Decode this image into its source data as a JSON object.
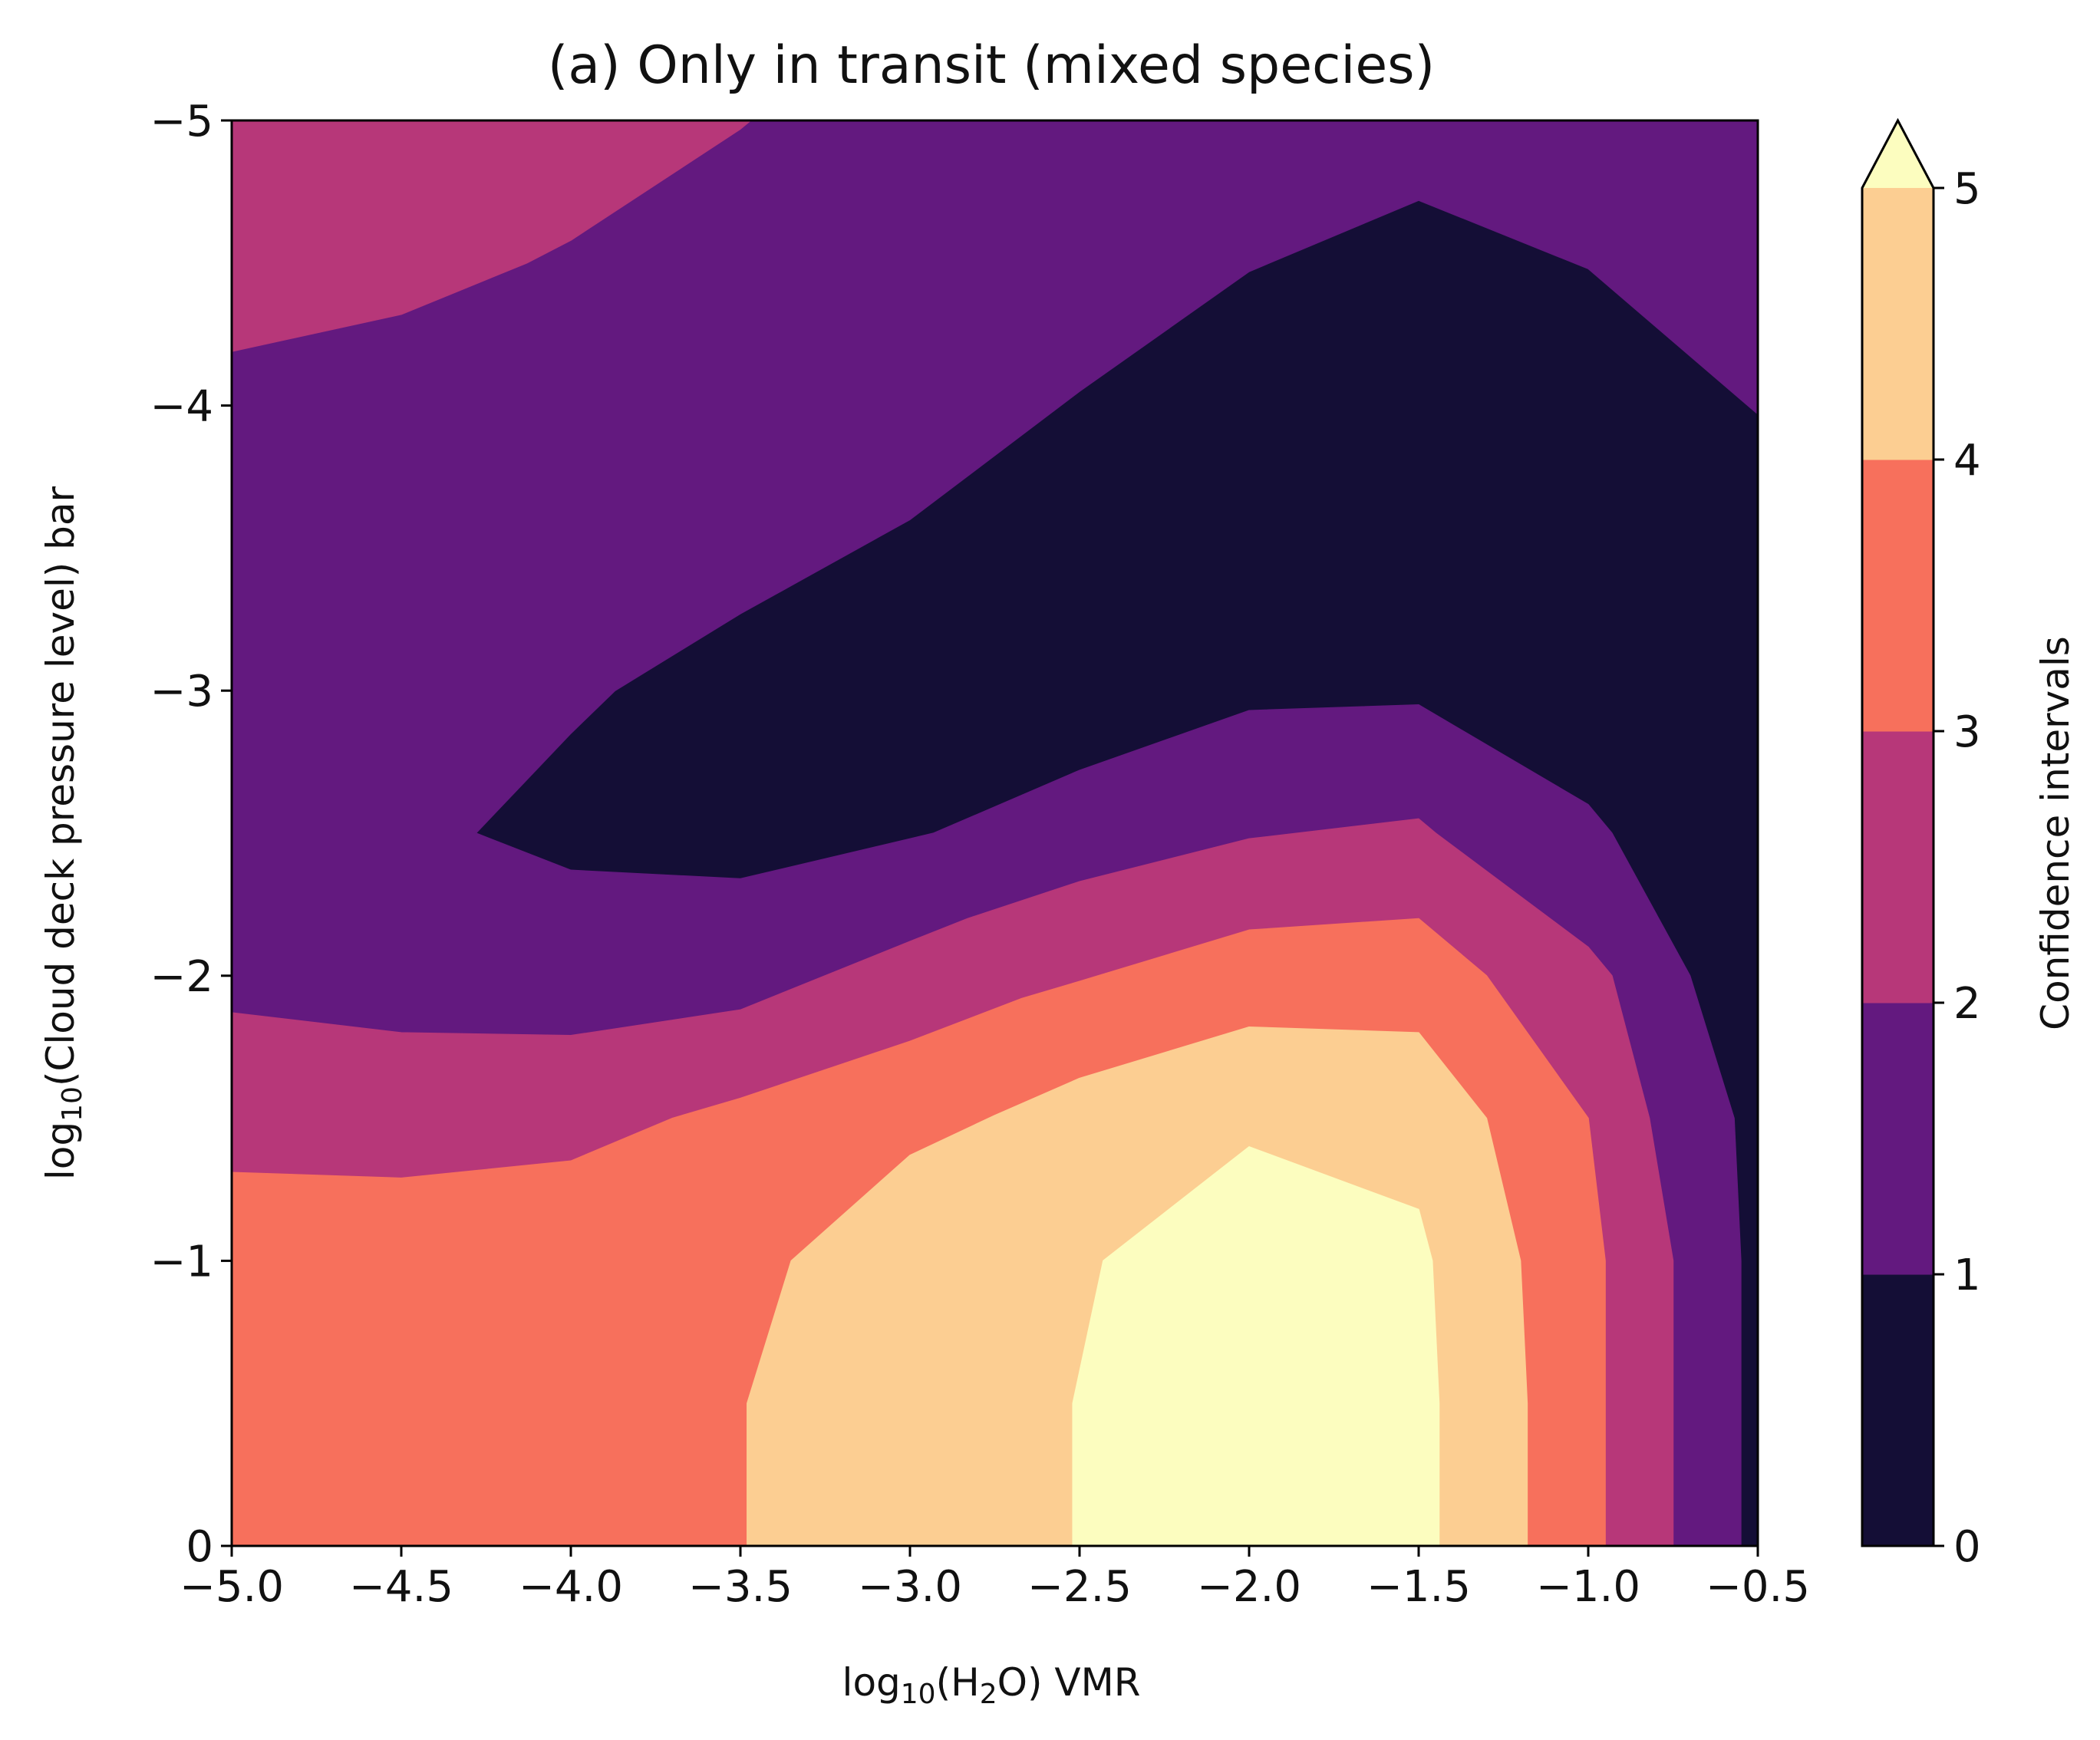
{
  "chart_data": {
    "type": "filled_contour",
    "title": "(a) Only in transit (mixed species)",
    "xlabel": {
      "prefix": "log",
      "sub": "10",
      "mid": "(H",
      "sub2": "2",
      "suffix": "O) VMR"
    },
    "ylabel": {
      "prefix": "log",
      "sub": "10",
      "suffix": "(Cloud deck pressure level) bar"
    },
    "xlim": [
      -5.0,
      -0.5
    ],
    "ylim": [
      0,
      -5
    ],
    "x_ticks": [
      -5.0,
      -4.5,
      -4.0,
      -3.5,
      -3.0,
      -2.5,
      -2.0,
      -1.5,
      -1.0,
      -0.5
    ],
    "x_tick_labels": [
      "−5.0",
      "−4.5",
      "−4.0",
      "−3.5",
      "−3.0",
      "−2.5",
      "−2.0",
      "−1.5",
      "−1.0",
      "−0.5"
    ],
    "y_ticks": [
      0,
      -1,
      -2,
      -3,
      -4,
      -5
    ],
    "y_tick_labels": [
      "0",
      "−1",
      "−2",
      "−3",
      "−4",
      "−5"
    ],
    "colorbar": {
      "label": "Confidence intervals",
      "levels": [
        0,
        1,
        2,
        3,
        4,
        5
      ],
      "tick_labels": [
        "0",
        "1",
        "2",
        "3",
        "4",
        "5"
      ],
      "extend": "max",
      "colors": [
        "#140e36",
        "#63197f",
        "#b73779",
        "#f7705c",
        "#fcce92",
        "#fcfdbf"
      ]
    },
    "regions": [
      {
        "level": "0-1",
        "color": "#140e36",
        "polygons": [
          [
            [
              -4.28,
              -2.5
            ],
            [
              -4.0,
              -2.85
            ],
            [
              -3.87,
              -3.0
            ],
            [
              -3.5,
              -3.27
            ],
            [
              -3.0,
              -3.6
            ],
            [
              -2.5,
              -4.05
            ],
            [
              -2.0,
              -4.47
            ],
            [
              -1.5,
              -4.72
            ],
            [
              -1.0,
              -4.48
            ],
            [
              -0.5,
              -3.97
            ],
            [
              -0.5,
              0
            ],
            [
              -0.55,
              0
            ],
            [
              -0.55,
              -1.0
            ],
            [
              -0.57,
              -1.5
            ],
            [
              -0.7,
              -2.0
            ],
            [
              -0.93,
              -2.5
            ],
            [
              -1.0,
              -2.6
            ],
            [
              -1.5,
              -2.95
            ],
            [
              -2.0,
              -2.93
            ],
            [
              -2.5,
              -2.72
            ],
            [
              -2.93,
              -2.5
            ],
            [
              -3.0,
              -2.48
            ],
            [
              -3.5,
              -2.34
            ],
            [
              -4.0,
              -2.37
            ]
          ]
        ]
      },
      {
        "level": "1-2",
        "color": "#63197f",
        "polygons": [
          [
            [
              -5.0,
              -4.19
            ],
            [
              -4.5,
              -4.32
            ],
            [
              -4.13,
              -4.5
            ],
            [
              -4.0,
              -4.58
            ],
            [
              -3.5,
              -4.97
            ],
            [
              -3.47,
              -5.0
            ],
            [
              -0.5,
              -5.0
            ],
            [
              -0.5,
              -3.97
            ],
            [
              -1.0,
              -4.48
            ],
            [
              -1.5,
              -4.72
            ],
            [
              -2.0,
              -4.47
            ],
            [
              -2.5,
              -4.05
            ],
            [
              -3.0,
              -3.6
            ],
            [
              -3.5,
              -3.27
            ],
            [
              -3.87,
              -3.0
            ],
            [
              -4.0,
              -2.85
            ],
            [
              -4.28,
              -2.5
            ],
            [
              -4.0,
              -2.37
            ],
            [
              -3.5,
              -2.34
            ],
            [
              -3.0,
              -2.48
            ],
            [
              -2.93,
              -2.5
            ],
            [
              -2.5,
              -2.72
            ],
            [
              -2.0,
              -2.93
            ],
            [
              -1.5,
              -2.95
            ],
            [
              -1.0,
              -2.6
            ],
            [
              -0.93,
              -2.5
            ],
            [
              -0.7,
              -2.0
            ],
            [
              -0.57,
              -1.5
            ],
            [
              -0.55,
              -1.0
            ],
            [
              -0.55,
              0
            ],
            [
              -0.75,
              0
            ],
            [
              -0.75,
              -1.0
            ],
            [
              -0.82,
              -1.5
            ],
            [
              -0.93,
              -2.0
            ],
            [
              -1.0,
              -2.1
            ],
            [
              -1.45,
              -2.5
            ],
            [
              -1.5,
              -2.55
            ],
            [
              -2.0,
              -2.48
            ],
            [
              -2.5,
              -2.33
            ],
            [
              -2.83,
              -2.2
            ],
            [
              -3.0,
              -2.12
            ],
            [
              -3.5,
              -1.88
            ],
            [
              -4.0,
              -1.79
            ],
            [
              -4.5,
              -1.8
            ],
            [
              -5.0,
              -1.87
            ]
          ]
        ]
      },
      {
        "level": "2-3",
        "color": "#b73779",
        "polygons": [
          [
            [
              -5.0,
              -5.0
            ],
            [
              -3.47,
              -5.0
            ],
            [
              -3.5,
              -4.97
            ],
            [
              -4.0,
              -4.58
            ],
            [
              -4.13,
              -4.5
            ],
            [
              -4.5,
              -4.32
            ],
            [
              -5.0,
              -4.19
            ]
          ],
          [
            [
              -5.0,
              -1.87
            ],
            [
              -4.5,
              -1.8
            ],
            [
              -4.0,
              -1.79
            ],
            [
              -3.5,
              -1.88
            ],
            [
              -3.0,
              -2.12
            ],
            [
              -2.83,
              -2.2
            ],
            [
              -2.5,
              -2.33
            ],
            [
              -2.0,
              -2.48
            ],
            [
              -1.5,
              -2.55
            ],
            [
              -1.45,
              -2.5
            ],
            [
              -1.0,
              -2.1
            ],
            [
              -0.93,
              -2.0
            ],
            [
              -0.82,
              -1.5
            ],
            [
              -0.75,
              -1.0
            ],
            [
              -0.75,
              0
            ],
            [
              -0.95,
              0
            ],
            [
              -0.95,
              -1.0
            ],
            [
              -1.0,
              -1.5
            ],
            [
              -1.3,
              -2.0
            ],
            [
              -1.5,
              -2.2
            ],
            [
              -2.0,
              -2.16
            ],
            [
              -2.5,
              -1.98
            ],
            [
              -2.67,
              -1.92
            ],
            [
              -3.0,
              -1.77
            ],
            [
              -3.5,
              -1.57
            ],
            [
              -3.7,
              -1.5
            ],
            [
              -4.0,
              -1.35
            ],
            [
              -4.5,
              -1.29
            ],
            [
              -5.0,
              -1.31
            ]
          ]
        ]
      },
      {
        "level": "3-4",
        "color": "#f7705c",
        "polygons": [
          [
            [
              -5.0,
              -1.31
            ],
            [
              -4.5,
              -1.29
            ],
            [
              -4.0,
              -1.35
            ],
            [
              -3.7,
              -1.5
            ],
            [
              -3.5,
              -1.57
            ],
            [
              -3.0,
              -1.77
            ],
            [
              -2.67,
              -1.92
            ],
            [
              -2.5,
              -1.98
            ],
            [
              -2.0,
              -2.16
            ],
            [
              -1.5,
              -2.2
            ],
            [
              -1.3,
              -2.0
            ],
            [
              -1.0,
              -1.5
            ],
            [
              -0.95,
              -1.0
            ],
            [
              -0.95,
              0
            ],
            [
              -1.18,
              0
            ],
            [
              -1.18,
              -0.5
            ],
            [
              -1.2,
              -1.0
            ],
            [
              -1.3,
              -1.5
            ],
            [
              -1.5,
              -1.8
            ],
            [
              -2.0,
              -1.82
            ],
            [
              -2.5,
              -1.64
            ],
            [
              -2.75,
              -1.51
            ],
            [
              -3.0,
              -1.37
            ],
            [
              -3.35,
              -1.0
            ],
            [
              -3.48,
              -0.5
            ],
            [
              -3.48,
              0
            ],
            [
              -5.0,
              0
            ]
          ]
        ]
      },
      {
        "level": "4-5",
        "color": "#fcce92",
        "polygons": [
          [
            [
              -3.48,
              0
            ],
            [
              -3.48,
              -0.5
            ],
            [
              -3.35,
              -1.0
            ],
            [
              -3.0,
              -1.37
            ],
            [
              -2.75,
              -1.51
            ],
            [
              -2.5,
              -1.64
            ],
            [
              -2.0,
              -1.82
            ],
            [
              -1.5,
              -1.8
            ],
            [
              -1.3,
              -1.5
            ],
            [
              -1.2,
              -1.0
            ],
            [
              -1.18,
              -0.5
            ],
            [
              -1.18,
              0
            ],
            [
              -1.44,
              0
            ],
            [
              -1.44,
              -0.5
            ],
            [
              -1.46,
              -1.0
            ],
            [
              -1.5,
              -1.18
            ],
            [
              -2.0,
              -1.4
            ],
            [
              -2.43,
              -1.0
            ],
            [
              -2.52,
              -0.5
            ],
            [
              -2.52,
              0
            ]
          ]
        ]
      },
      {
        "level": ">5",
        "color": "#fcfdbf",
        "polygons": [
          [
            [
              -2.52,
              0
            ],
            [
              -2.52,
              -0.5
            ],
            [
              -2.43,
              -1.0
            ],
            [
              -2.0,
              -1.4
            ],
            [
              -1.5,
              -1.18
            ],
            [
              -1.46,
              -1.0
            ],
            [
              -1.44,
              -0.5
            ],
            [
              -1.44,
              0
            ]
          ]
        ]
      }
    ]
  }
}
